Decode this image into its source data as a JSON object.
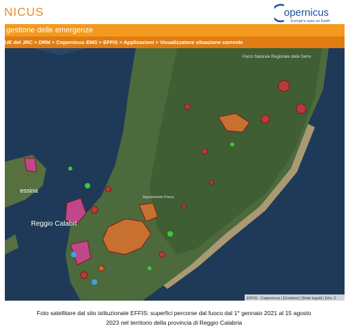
{
  "header": {
    "title": "NICUS",
    "logo": "opernicus",
    "tagline": "Europe's eyes on Earth"
  },
  "banner": "gestione delle emergenze",
  "breadcrumb": "UE del JRC > DRM > Copernicus EMS > EFFIS > Applicazioni > Visualizzatore situazione corrente",
  "map": {
    "labels": [
      "Parco Naturale Regionale delle Serre",
      "essina",
      "Reggio Calabri",
      "Aspromonte Parco"
    ],
    "footer": "EFFIS - Copernicus | [Cookies] | [Note legali] | [Ver. 2"
  },
  "caption": [
    "Foto satellitare dal sito istituzionale EFFIS: superfici percorse dal fuoco dal 1° gennaio 2021 al 15 agosto",
    "2023 nel territorio della provincia di Reggio Calabria"
  ]
}
